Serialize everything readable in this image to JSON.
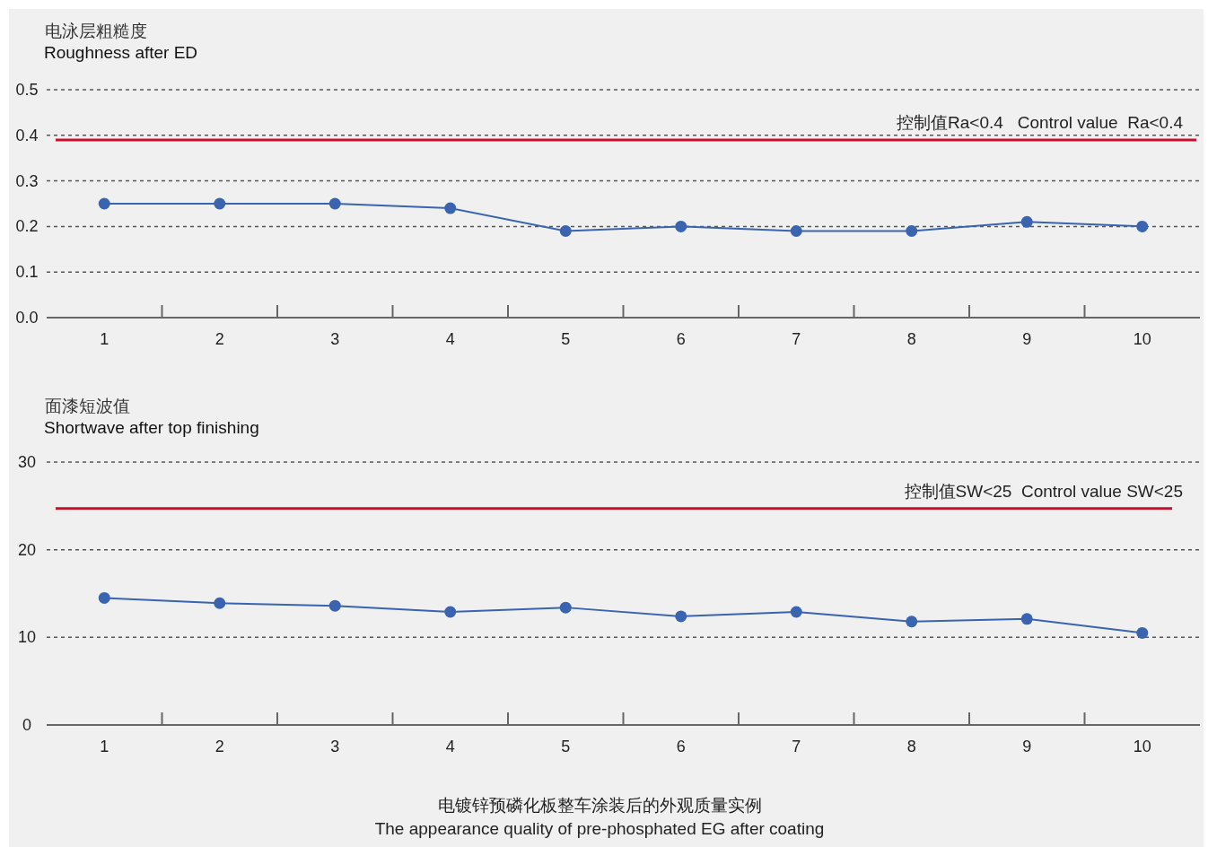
{
  "chart_data": [
    {
      "type": "line",
      "title": "电泳层粗糙度",
      "subtitle": "Roughness after ED",
      "categories": [
        "1",
        "2",
        "3",
        "4",
        "5",
        "6",
        "7",
        "8",
        "9",
        "10"
      ],
      "series": [
        {
          "color": "#3a64b0",
          "values": [
            0.25,
            0.25,
            0.25,
            0.24,
            0.19,
            0.2,
            0.19,
            0.19,
            0.21,
            0.2
          ]
        }
      ],
      "ylim": [
        0,
        0.5
      ],
      "yticks": [
        {
          "value": 0,
          "label": "0.0"
        },
        0.1,
        0.2,
        0.3,
        0.4,
        0.5
      ],
      "grid": "y",
      "marker": "circle",
      "line_style": "solid",
      "ref_lines": [
        {
          "axis": "y",
          "value": 0.39,
          "label": "控制值Ra<0.4   Control value  Ra<0.4",
          "color": "#c8102e"
        }
      ]
    },
    {
      "type": "line",
      "title": "面漆短波值",
      "subtitle": "Shortwave after top finishing",
      "categories": [
        "1",
        "2",
        "3",
        "4",
        "5",
        "6",
        "7",
        "8",
        "9",
        "10"
      ],
      "series": [
        {
          "color": "#3a64b0",
          "values": [
            14.5,
            13.9,
            13.6,
            12.9,
            13.4,
            12.4,
            12.9,
            11.8,
            12.1,
            10.5
          ]
        }
      ],
      "ylim": [
        0,
        30
      ],
      "yticks": [
        0,
        10,
        20,
        30
      ],
      "grid": "y",
      "marker": "circle",
      "line_style": "solid",
      "ref_lines": [
        {
          "axis": "y",
          "value": 24.7,
          "label": "控制值SW<25  Control value SW<25",
          "color": "#c8102e"
        }
      ],
      "annotations": [
        "电镀锌预磷化板整车涂装后的外观质量实例",
        "The appearance quality of pre-phosphated EG after coating"
      ]
    }
  ]
}
